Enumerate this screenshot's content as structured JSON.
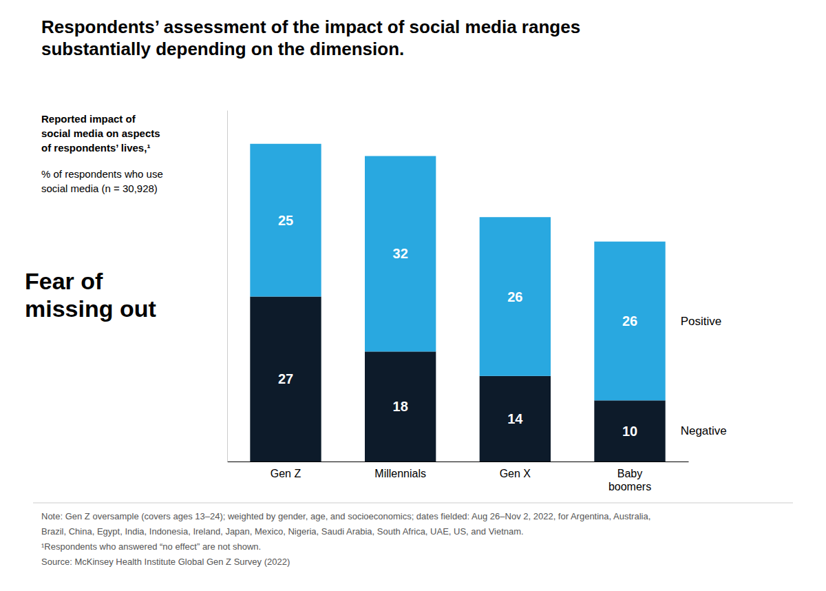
{
  "chart_data": {
    "type": "bar",
    "title": "Respondents’ assessment of the impact of social media ranges\nsubstantially depending on the dimension.",
    "subtitle": "Reported impact of\nsocial media on aspects\nof respondents’ lives,¹",
    "annotations": [
      "% of respondents who use\nsocial media (n = 30,928)",
      "Fear of\nmissing out",
      "Note: Gen Z oversample (covers ages 13–24); weighted by gender, age, and socioeconomics; dates fielded: Aug 26–Nov 2, 2022, for Argentina, Australia,",
      "Brazil, China, Egypt, India, Indonesia, Ireland, Japan, Mexico, Nigeria, Saudi Arabia, South Africa, UAE, US, and Vietnam.",
      "¹Respondents who answered “no effect” are not shown.",
      "Source: McKinsey Health Institute Global Gen Z Survey (2022)"
    ],
    "categories": [
      "Gen Z",
      "Millennials",
      "Gen X",
      "Baby\nboomers"
    ],
    "series": [
      {
        "name": "Negative",
        "color": "#0d1b2a",
        "values": [
          27,
          18,
          14,
          10
        ]
      },
      {
        "name": "Positive",
        "color": "#29a8e0",
        "values": [
          25,
          32,
          26,
          26
        ]
      }
    ],
    "stacked": true,
    "data_labels": true,
    "legend": "right",
    "tick_labels": "x",
    "ylim": [
      0,
      57.5
    ],
    "grid": false
  }
}
